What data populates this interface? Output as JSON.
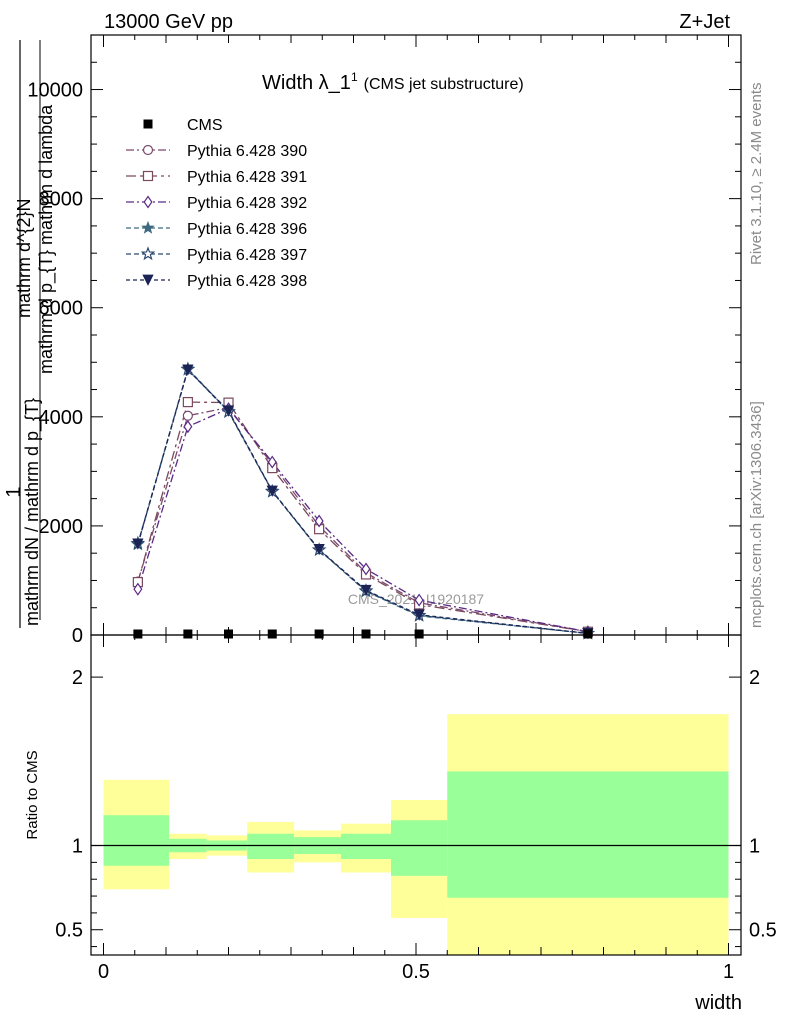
{
  "header": {
    "left": "13000 GeV pp",
    "right": "Z+Jet"
  },
  "side": {
    "rivet": "Rivet 3.1.10, ≥ 2.4M events",
    "mcplots": "mcplots.cern.ch [arXiv:1306.3436]"
  },
  "watermark": "CMS_2021_I1920187",
  "chart_data": [
    {
      "type": "line",
      "title_main": "Width λ_1",
      "title_sup": "1",
      "title_sub": "(CMS jet substructure)",
      "ylabel_numerator": "mathrm d^{2}N",
      "ylabel_denominator": "mathrm d p_{T} mathrm d lambda",
      "ylabel_prefix": "1",
      "ylabel_prefix_den": "mathrm dN / mathrm d p_{T}",
      "ylim": [
        0,
        11000
      ],
      "xlim": [
        -0.02,
        1.02
      ],
      "y_ticks": [
        0,
        2000,
        4000,
        6000,
        8000,
        10000
      ],
      "y_tick_labels": [
        "0",
        "2000",
        "4000",
        "6000",
        "8000",
        "10000"
      ],
      "legend_position": "top-left",
      "cms": {
        "name": "CMS",
        "x": [
          0.055,
          0.135,
          0.2,
          0.27,
          0.345,
          0.42,
          0.505,
          0.775
        ],
        "y": [
          0,
          0,
          0,
          0,
          0,
          0,
          0,
          0
        ]
      },
      "series": [
        {
          "name": "Pythia 6.428 390",
          "color": "#7b4a6e",
          "marker": "circle-open",
          "dash": "8,3,2,3",
          "x": [
            0.055,
            0.135,
            0.2,
            0.27,
            0.345,
            0.42,
            0.505,
            0.775
          ],
          "y": [
            980,
            4020,
            4170,
            3130,
            2000,
            1140,
            590,
            60
          ]
        },
        {
          "name": "Pythia 6.428 391",
          "color": "#7a4a5c",
          "marker": "square-open",
          "dash": "10,4,3,4",
          "x": [
            0.055,
            0.135,
            0.2,
            0.27,
            0.345,
            0.42,
            0.505,
            0.775
          ],
          "y": [
            970,
            4270,
            4260,
            3060,
            1940,
            1110,
            560,
            60
          ]
        },
        {
          "name": "Pythia 6.428 392",
          "color": "#5a2a86",
          "marker": "diamond-open",
          "dash": "8,3,2,3",
          "x": [
            0.055,
            0.135,
            0.2,
            0.27,
            0.345,
            0.42,
            0.505,
            0.775
          ],
          "y": [
            840,
            3820,
            4150,
            3170,
            2090,
            1210,
            640,
            60
          ]
        },
        {
          "name": "Pythia 6.428 396",
          "color": "#3d6a80",
          "marker": "star-filled",
          "dash": "5,3",
          "x": [
            0.055,
            0.135,
            0.2,
            0.27,
            0.345,
            0.42,
            0.505,
            0.775
          ],
          "y": [
            1660,
            4880,
            4100,
            2640,
            1560,
            800,
            350,
            30
          ]
        },
        {
          "name": "Pythia 6.428 397",
          "color": "#2c4a70",
          "marker": "star-open",
          "dash": "5,3",
          "x": [
            0.055,
            0.135,
            0.2,
            0.27,
            0.345,
            0.42,
            0.505,
            0.775
          ],
          "y": [
            1680,
            4870,
            4090,
            2630,
            1560,
            810,
            360,
            30
          ]
        },
        {
          "name": "Pythia 6.428 398",
          "color": "#1c2355",
          "marker": "triangle-down-filled",
          "dash": "4,3",
          "x": [
            0.055,
            0.135,
            0.2,
            0.27,
            0.345,
            0.42,
            0.505,
            0.775
          ],
          "y": [
            1670,
            4860,
            4110,
            2640,
            1570,
            820,
            370,
            30
          ]
        }
      ]
    },
    {
      "type": "area",
      "ylabel": "Ratio to CMS",
      "xlabel": "width",
      "ylim": [
        0.35,
        2.25
      ],
      "xlim": [
        -0.02,
        1.02
      ],
      "x_ticks": [
        0,
        0.5,
        1
      ],
      "x_tick_labels": [
        "0",
        "0.5",
        "1"
      ],
      "y_ticks": [
        0.5,
        1,
        2
      ],
      "y_tick_labels": [
        "0.5",
        "1",
        "2"
      ],
      "reference_line": 1,
      "bands": [
        {
          "x0": 0.0,
          "x1": 0.105,
          "outer": [
            0.74,
            1.39
          ],
          "inner": [
            0.88,
            1.18
          ]
        },
        {
          "x0": 0.105,
          "x1": 0.165,
          "outer": [
            0.92,
            1.07
          ],
          "inner": [
            0.96,
            1.04
          ]
        },
        {
          "x0": 0.165,
          "x1": 0.23,
          "outer": [
            0.94,
            1.06
          ],
          "inner": [
            0.97,
            1.03
          ]
        },
        {
          "x0": 0.23,
          "x1": 0.305,
          "outer": [
            0.84,
            1.14
          ],
          "inner": [
            0.92,
            1.07
          ]
        },
        {
          "x0": 0.305,
          "x1": 0.38,
          "outer": [
            0.9,
            1.09
          ],
          "inner": [
            0.95,
            1.05
          ]
        },
        {
          "x0": 0.38,
          "x1": 0.46,
          "outer": [
            0.84,
            1.13
          ],
          "inner": [
            0.92,
            1.07
          ]
        },
        {
          "x0": 0.46,
          "x1": 0.55,
          "outer": [
            0.57,
            1.27
          ],
          "inner": [
            0.82,
            1.15
          ]
        },
        {
          "x0": 0.55,
          "x1": 1.0,
          "outer": [
            0.3,
            1.78
          ],
          "inner": [
            0.69,
            1.44
          ]
        }
      ],
      "colors": {
        "outer": "#ffff99",
        "inner": "#99ff99"
      }
    }
  ]
}
